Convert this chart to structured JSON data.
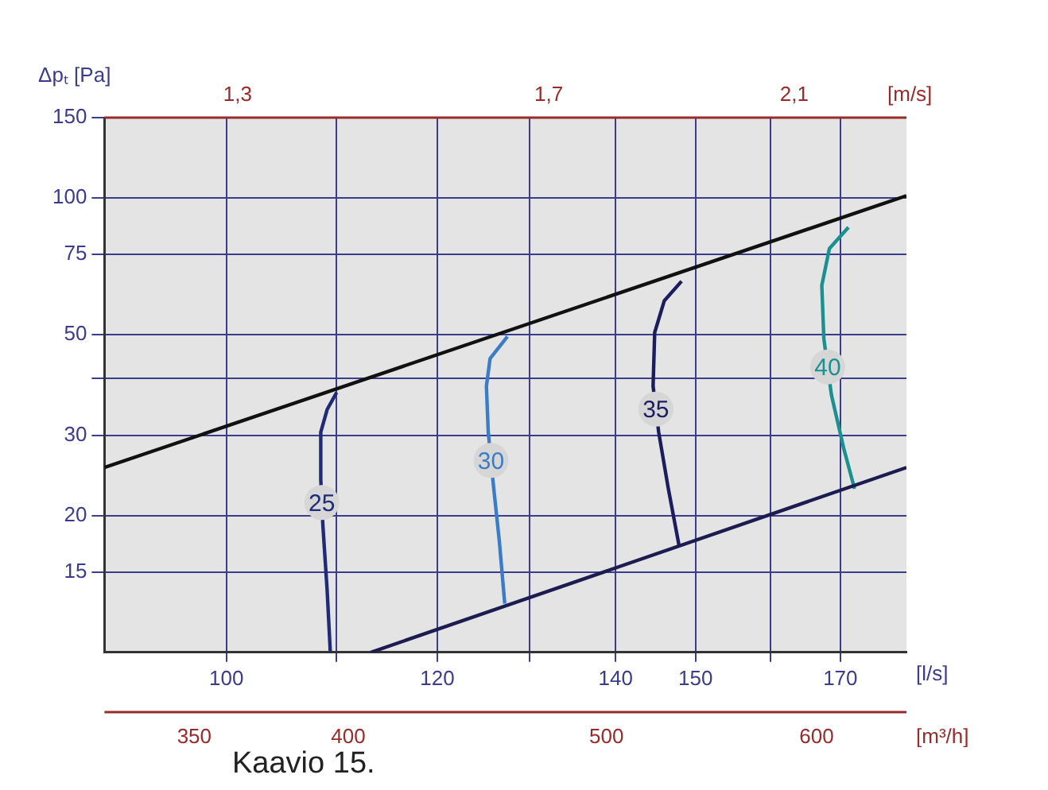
{
  "chart_data": {
    "type": "line",
    "ylabel": "Δpₜ [Pa]",
    "xlabel": "[l/s]",
    "log": "xy",
    "grid": true,
    "xlim": [
      90,
      180
    ],
    "xticks": [
      100,
      {
        "value": 110,
        "label": null
      },
      120,
      {
        "value": 130,
        "label": null
      },
      140,
      150,
      {
        "value": 160,
        "label": null
      },
      170
    ],
    "ylim": [
      10,
      150
    ],
    "yticks": [
      15,
      20,
      30,
      {
        "value": 40,
        "label": null
      },
      50,
      75,
      100,
      150
    ],
    "series": [
      {
        "color": "#111111",
        "x": [
          90,
          180
        ],
        "values": [
          25.5,
          101
        ]
      },
      {
        "color": "#1c1c50",
        "x": [
          113.3,
          180
        ],
        "values": [
          10,
          25.5
        ]
      },
      {
        "name": "25",
        "color": "#1f2a78",
        "x": [
          110.0,
          109.1,
          108.5,
          108.5,
          108.7,
          109.1,
          109.4
        ],
        "values": [
          37.3,
          34.2,
          30.5,
          24.0,
          19.0,
          13.7,
          10.0
        ]
      },
      {
        "name": "30",
        "color": "#3a7cc8",
        "x": [
          127.5,
          125.6,
          125.2,
          125.4,
          126.0,
          126.6,
          127.2
        ],
        "values": [
          49.5,
          44.3,
          38.5,
          30.5,
          22.9,
          17.6,
          12.8
        ]
      },
      {
        "name": "35",
        "color": "#1c1c60",
        "x": [
          148.2,
          146.0,
          144.8,
          144.6,
          145.3,
          146.5,
          147.9
        ],
        "values": [
          65.5,
          59.3,
          50.5,
          38.5,
          30.5,
          23.0,
          17.1
        ]
      },
      {
        "name": "40",
        "color": "#1a9090",
        "x": [
          171.2,
          168.4,
          167.3,
          167.6,
          168.7,
          170.5,
          172.1
        ],
        "values": [
          86.1,
          77.3,
          64.1,
          48.9,
          36.8,
          28.1,
          22.9
        ]
      }
    ],
    "annotations": [
      "1,3",
      "1,7",
      "2,1",
      "[m/s]",
      "350",
      "400",
      "500",
      "600",
      "[m³/h]",
      "Kaavio 15."
    ]
  }
}
